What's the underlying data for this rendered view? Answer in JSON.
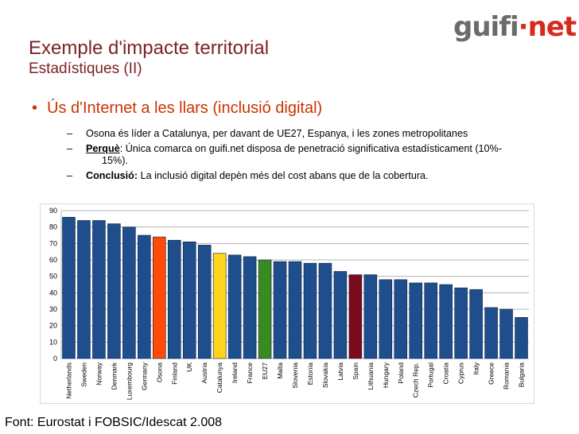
{
  "logo": {
    "part1": "guifi",
    "dot": "·",
    "part2": "net"
  },
  "slide": {
    "title": "Exemple d'impacte territorial",
    "subtitle": "Estadístiques (II)",
    "bullet_marker": "•",
    "bullet": "Ús d'Internet a les llars (inclusió digital)",
    "sub_marker": "–",
    "sub1": "Osona és líder a Catalunya, per davant de UE27, Espanya, i les zones metropolitanes",
    "sub2_label": "Perquè",
    "sub2_text": ": Única comarca on guifi.net disposa de penetració significativa estadísticament (10%-",
    "sub2_cont": "15%).",
    "sub3_label": "Conclusió:",
    "sub3_text": " La inclusió digital depèn més del cost abans que de la cobertura.",
    "source": "Font: Eurostat i FOBSIC/Idescat 2.008"
  },
  "chart_data": {
    "type": "bar",
    "title": "",
    "xlabel": "",
    "ylabel": "",
    "ylim": [
      0,
      90
    ],
    "yticks": [
      0,
      10,
      20,
      30,
      40,
      50,
      60,
      70,
      80,
      90
    ],
    "grid": true,
    "categories": [
      "Netherlands",
      "Sweden",
      "Norway",
      "Denmark",
      "Luxembourg",
      "Germany",
      "Osona",
      "Finland",
      "UK",
      "Austria",
      "Catalunya",
      "Ireland",
      "France",
      "EU27",
      "Malta",
      "Slovenia",
      "Estonia",
      "Slovakia",
      "Latvia",
      "Spain",
      "Lithuania",
      "Hungary",
      "Poland",
      "Czech Rep.",
      "Portugal",
      "Croatia",
      "Cyprus",
      "Italy",
      "Greece",
      "Romania",
      "Bulgaria"
    ],
    "values": [
      86,
      84,
      84,
      82,
      80,
      75,
      74,
      72,
      71,
      69,
      64,
      63,
      62,
      60,
      59,
      59,
      58,
      58,
      53,
      51,
      51,
      48,
      48,
      46,
      46,
      45,
      43,
      42,
      31,
      30,
      25
    ],
    "colors": {
      "default": "#1f4e8c",
      "Osona": "#ff4a0a",
      "Catalunya": "#ffd320",
      "EU27": "#3a8a22",
      "Spain": "#7b0a1e"
    }
  }
}
